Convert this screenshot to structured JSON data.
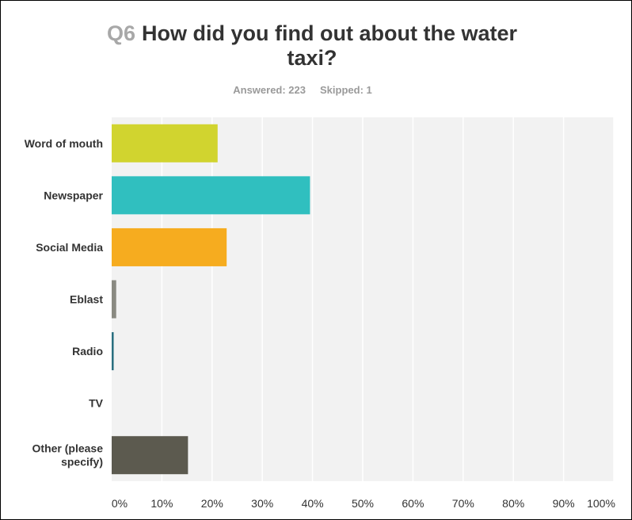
{
  "header": {
    "question_number": "Q6",
    "question_text": "How did you find out about the water taxi?",
    "answered_label": "Answered: 223",
    "skipped_label": "Skipped: 1"
  },
  "chart_data": {
    "type": "bar",
    "orientation": "horizontal",
    "title": "Q6 How did you find out about the water taxi?",
    "categories": [
      "Word of mouth",
      "Newspaper",
      "Social Media",
      "Eblast",
      "Radio",
      "TV",
      "Other (please specify)"
    ],
    "category_lines": [
      [
        "Word of mouth"
      ],
      [
        "Newspaper"
      ],
      [
        "Social Media"
      ],
      [
        "Eblast"
      ],
      [
        "Radio"
      ],
      [
        "TV"
      ],
      [
        "Other (please",
        "specify)"
      ]
    ],
    "values": [
      21.1,
      39.5,
      22.9,
      0.9,
      0.4,
      0.0,
      15.2
    ],
    "colors": [
      "#d1d42f",
      "#30bfbf",
      "#f6ac1f",
      "#8a8a82",
      "#2a6f80",
      "#9a9a9a",
      "#5c5a4f"
    ],
    "xlim": [
      0,
      100
    ],
    "x_ticks": [
      "0%",
      "10%",
      "20%",
      "30%",
      "40%",
      "50%",
      "60%",
      "70%",
      "80%",
      "90%",
      "100%"
    ],
    "xlabel": "",
    "ylabel": "",
    "grid": true,
    "legend": "none",
    "plot_background": "#f2f2f2",
    "gridline_color": "#ffffff"
  }
}
